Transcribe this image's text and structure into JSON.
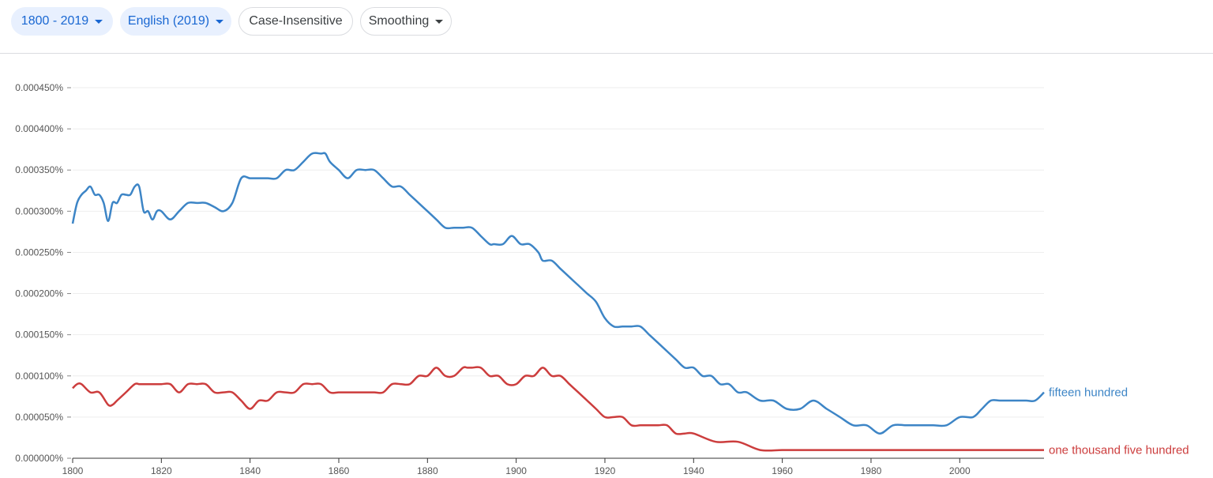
{
  "toolbar": {
    "year_range": "1800 - 2019",
    "corpus": "English (2019)",
    "case": "Case-Insensitive",
    "smoothing": "Smoothing"
  },
  "colors": {
    "series_blue": "#3d85c6",
    "series_red": "#cc3d3d",
    "axis_text": "#555555",
    "grid": "#eeeeee"
  },
  "chart_data": {
    "type": "line",
    "title": "",
    "xlabel": "",
    "ylabel": "",
    "xlim": [
      1800,
      2019
    ],
    "ylim": [
      0,
      4.5e-06
    ],
    "x_ticks": [
      1800,
      1820,
      1840,
      1860,
      1880,
      1900,
      1920,
      1940,
      1960,
      1980,
      2000
    ],
    "y_ticks": [
      "0.000000%",
      "0.000050%",
      "0.000100%",
      "0.000150%",
      "0.000200%",
      "0.000250%",
      "0.000300%",
      "0.000350%",
      "0.000400%",
      "0.000450%"
    ],
    "series": [
      {
        "name": "fifteen hundred",
        "color": "#3d85c6",
        "x": [
          1800,
          1801,
          1802,
          1803,
          1804,
          1805,
          1806,
          1807,
          1808,
          1809,
          1810,
          1811,
          1812,
          1813,
          1814,
          1815,
          1816,
          1817,
          1818,
          1819,
          1820,
          1822,
          1824,
          1826,
          1828,
          1830,
          1832,
          1834,
          1836,
          1838,
          1840,
          1842,
          1844,
          1846,
          1848,
          1850,
          1852,
          1854,
          1856,
          1857,
          1858,
          1860,
          1862,
          1864,
          1866,
          1868,
          1870,
          1872,
          1874,
          1876,
          1878,
          1880,
          1882,
          1884,
          1886,
          1888,
          1890,
          1892,
          1894,
          1895,
          1897,
          1899,
          1901,
          1903,
          1905,
          1906,
          1908,
          1910,
          1912,
          1914,
          1916,
          1918,
          1920,
          1922,
          1924,
          1926,
          1928,
          1930,
          1932,
          1934,
          1936,
          1938,
          1940,
          1942,
          1944,
          1946,
          1948,
          1950,
          1952,
          1955,
          1958,
          1961,
          1964,
          1967,
          1970,
          1973,
          1976,
          1979,
          1982,
          1985,
          1988,
          1991,
          1994,
          1997,
          2000,
          2003,
          2005,
          2007,
          2009,
          2011,
          2013,
          2015,
          2017,
          2019
        ],
        "values": [
          2.85e-06,
          3.1e-06,
          3.2e-06,
          3.25e-06,
          3.3e-06,
          3.2e-06,
          3.2e-06,
          3.1e-06,
          2.88e-06,
          3.1e-06,
          3.1e-06,
          3.2e-06,
          3.2e-06,
          3.2e-06,
          3.3e-06,
          3.3e-06,
          3e-06,
          3e-06,
          2.9e-06,
          3e-06,
          3e-06,
          2.9e-06,
          3e-06,
          3.1e-06,
          3.1e-06,
          3.1e-06,
          3.05e-06,
          3e-06,
          3.1e-06,
          3.4e-06,
          3.4e-06,
          3.4e-06,
          3.4e-06,
          3.4e-06,
          3.5e-06,
          3.5e-06,
          3.6e-06,
          3.7e-06,
          3.7e-06,
          3.7e-06,
          3.6e-06,
          3.5e-06,
          3.4e-06,
          3.5e-06,
          3.5e-06,
          3.5e-06,
          3.4e-06,
          3.3e-06,
          3.3e-06,
          3.2e-06,
          3.1e-06,
          3e-06,
          2.9e-06,
          2.8e-06,
          2.8e-06,
          2.8e-06,
          2.8e-06,
          2.7e-06,
          2.6e-06,
          2.6e-06,
          2.6e-06,
          2.7e-06,
          2.6e-06,
          2.6e-06,
          2.5e-06,
          2.4e-06,
          2.4e-06,
          2.3e-06,
          2.2e-06,
          2.1e-06,
          2e-06,
          1.9e-06,
          1.7e-06,
          1.6e-06,
          1.6e-06,
          1.6e-06,
          1.6e-06,
          1.5e-06,
          1.4e-06,
          1.3e-06,
          1.2e-06,
          1.1e-06,
          1.1e-06,
          1e-06,
          1e-06,
          9e-07,
          9e-07,
          8e-07,
          8e-07,
          7e-07,
          7e-07,
          6e-07,
          6e-07,
          7e-07,
          6e-07,
          5e-07,
          4e-07,
          4e-07,
          3e-07,
          4e-07,
          4e-07,
          4e-07,
          4e-07,
          4e-07,
          5e-07,
          5e-07,
          6e-07,
          7e-07,
          7e-07,
          7e-07,
          7e-07,
          7e-07,
          7e-07,
          8e-07
        ]
      },
      {
        "name": "one thousand five hundred",
        "color": "#cc3d3d",
        "x": [
          1800,
          1801,
          1802,
          1804,
          1806,
          1808,
          1809,
          1810,
          1812,
          1814,
          1815,
          1816,
          1818,
          1820,
          1822,
          1824,
          1826,
          1828,
          1830,
          1832,
          1834,
          1836,
          1838,
          1840,
          1842,
          1844,
          1846,
          1848,
          1850,
          1852,
          1854,
          1856,
          1858,
          1860,
          1862,
          1864,
          1866,
          1868,
          1870,
          1872,
          1874,
          1876,
          1878,
          1880,
          1882,
          1884,
          1886,
          1888,
          1889,
          1890,
          1892,
          1894,
          1896,
          1898,
          1900,
          1902,
          1904,
          1906,
          1908,
          1910,
          1912,
          1914,
          1916,
          1918,
          1920,
          1922,
          1924,
          1926,
          1928,
          1930,
          1932,
          1934,
          1936,
          1938,
          1940,
          1945,
          1950,
          1955,
          1960,
          1965,
          1970,
          1975,
          1980,
          1985,
          1990,
          1995,
          2000,
          2005,
          2010,
          2015,
          2019
        ],
        "values": [
          8.5e-07,
          9e-07,
          9e-07,
          8e-07,
          8e-07,
          6.5e-07,
          6.5e-07,
          7e-07,
          8e-07,
          9e-07,
          9e-07,
          9e-07,
          9e-07,
          9e-07,
          9e-07,
          8e-07,
          9e-07,
          9e-07,
          9e-07,
          8e-07,
          8e-07,
          8e-07,
          7e-07,
          6e-07,
          7e-07,
          7e-07,
          8e-07,
          8e-07,
          8e-07,
          9e-07,
          9e-07,
          9e-07,
          8e-07,
          8e-07,
          8e-07,
          8e-07,
          8e-07,
          8e-07,
          8e-07,
          9e-07,
          9e-07,
          9e-07,
          1e-06,
          1e-06,
          1.1e-06,
          1e-06,
          1e-06,
          1.1e-06,
          1.1e-06,
          1.1e-06,
          1.1e-06,
          1e-06,
          1e-06,
          9e-07,
          9e-07,
          1e-06,
          1e-06,
          1.1e-06,
          1e-06,
          1e-06,
          9e-07,
          8e-07,
          7e-07,
          6e-07,
          5e-07,
          5e-07,
          5e-07,
          4e-07,
          4e-07,
          4e-07,
          4e-07,
          4e-07,
          3e-07,
          3e-07,
          3e-07,
          2e-07,
          2e-07,
          1e-07,
          1e-07,
          1e-07,
          1e-07,
          1e-07,
          1e-07,
          1e-07,
          1e-07,
          1e-07,
          1e-07,
          1e-07,
          1e-07,
          1e-07,
          1e-07
        ]
      }
    ]
  }
}
